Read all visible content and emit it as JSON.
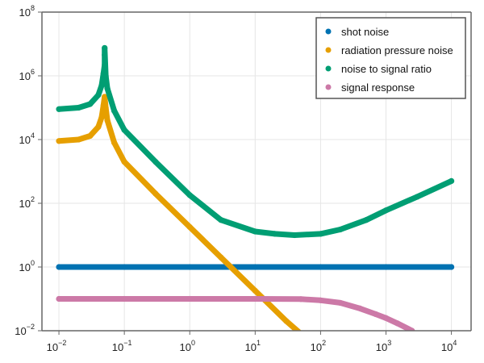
{
  "chart_data": {
    "type": "scatter",
    "title": "",
    "xlabel": "",
    "ylabel": "",
    "xscale": "log10",
    "yscale": "log10",
    "xlim": [
      0.0055,
      20000
    ],
    "ylim": [
      0.01,
      100000000
    ],
    "grid": true,
    "legend_position": "top-right",
    "x_ticks": [
      {
        "value": 0.01,
        "base": "10",
        "exp": "−2"
      },
      {
        "value": 0.1,
        "base": "10",
        "exp": "−1"
      },
      {
        "value": 1,
        "base": "10",
        "exp": "0"
      },
      {
        "value": 10,
        "base": "10",
        "exp": "1"
      },
      {
        "value": 100,
        "base": "10",
        "exp": "2"
      },
      {
        "value": 1000,
        "base": "10",
        "exp": "3"
      },
      {
        "value": 10000,
        "base": "10",
        "exp": "4"
      }
    ],
    "y_ticks": [
      {
        "value": 0.01,
        "base": "10",
        "exp": "−2"
      },
      {
        "value": 1,
        "base": "10",
        "exp": "0"
      },
      {
        "value": 100,
        "base": "10",
        "exp": "2"
      },
      {
        "value": 10000,
        "base": "10",
        "exp": "4"
      },
      {
        "value": 1000000,
        "base": "10",
        "exp": "6"
      },
      {
        "value": 100000000,
        "base": "10",
        "exp": "8"
      }
    ],
    "series": [
      {
        "name": "shot noise",
        "color": "#0072b2",
        "x": [
          0.01,
          0.1,
          1,
          10,
          100,
          1000,
          10000
        ],
        "y": [
          1,
          1,
          1,
          1,
          1,
          1,
          1
        ]
      },
      {
        "name": "radiation pressure noise",
        "color": "#e69f00",
        "x": [
          0.01,
          0.02,
          0.03,
          0.04,
          0.045,
          0.048,
          0.05,
          0.052,
          0.055,
          0.07,
          0.1,
          0.3,
          1,
          3,
          10,
          30,
          50
        ],
        "y": [
          9000,
          10000,
          13000,
          25000,
          50000,
          120000,
          220000,
          100000,
          40000,
          8000,
          2000,
          200,
          18,
          2,
          0.18,
          0.02,
          0.008
        ]
      },
      {
        "name": "noise to signal ratio",
        "color": "#009e73",
        "x": [
          0.01,
          0.02,
          0.03,
          0.04,
          0.045,
          0.048,
          0.05,
          0.05,
          0.05,
          0.052,
          0.055,
          0.07,
          0.1,
          0.3,
          1,
          3,
          10,
          20,
          40,
          100,
          200,
          500,
          1000,
          3000,
          10000
        ],
        "y": [
          90000,
          100000,
          130000,
          250000,
          500000,
          1200000,
          2200000,
          4500000,
          7500000,
          1000000,
          400000,
          80000,
          20000,
          2000,
          180,
          30,
          13,
          11,
          10,
          11,
          15,
          30,
          60,
          160,
          500
        ]
      },
      {
        "name": "signal response",
        "color": "#cc79a7",
        "x": [
          0.01,
          0.1,
          1,
          10,
          50,
          100,
          200,
          400,
          700,
          1000,
          1500,
          2500
        ],
        "y": [
          0.1,
          0.1,
          0.1,
          0.1,
          0.098,
          0.09,
          0.075,
          0.05,
          0.033,
          0.025,
          0.017,
          0.01
        ]
      }
    ]
  }
}
